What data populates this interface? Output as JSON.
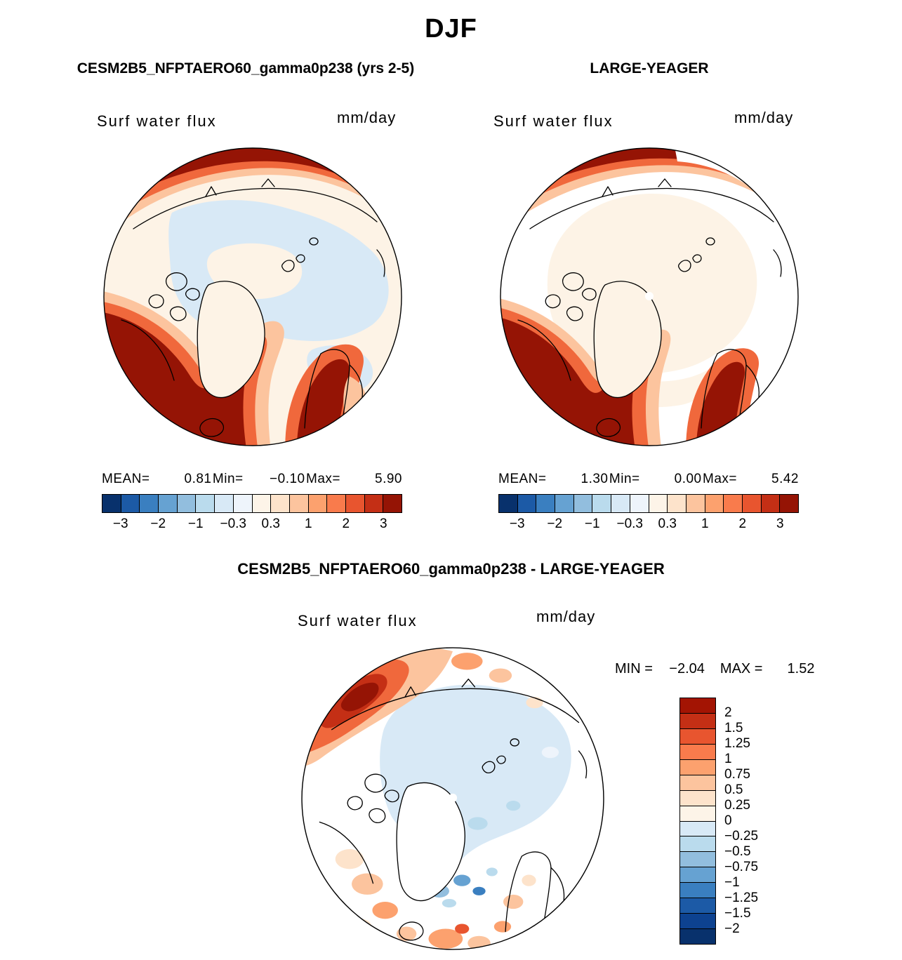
{
  "page": {
    "title": "DJF"
  },
  "panels": {
    "model": {
      "title": "CESM2B5_NFPTAERO60_gamma0p238 (yrs 2-5)",
      "field_label": "Surf water flux",
      "units": "mm/day",
      "stats": {
        "mean_label": "MEAN=",
        "mean": "0.81",
        "min_label": "Min=",
        "min": "−0.10",
        "max_label": "Max=",
        "max": "5.90"
      }
    },
    "obs": {
      "title": "LARGE-YEAGER",
      "field_label": "Surf water flux",
      "units": "mm/day",
      "stats": {
        "mean_label": "MEAN=",
        "mean": "1.30",
        "min_label": "Min=",
        "min": "0.00",
        "max_label": "Max=",
        "max": "5.42"
      }
    },
    "diff": {
      "title": "CESM2B5_NFPTAERO60_gamma0p238 - LARGE-YEAGER",
      "field_label": "Surf water flux",
      "units": "mm/day",
      "stats": {
        "min_label": "MIN =",
        "min": "−2.04",
        "max_label": "MAX =",
        "max": "1.52"
      }
    }
  },
  "colorbar_h": {
    "cells": 16,
    "colors": [
      "#08316c",
      "#1c5aa6",
      "#3a7fc0",
      "#66a2d2",
      "#92bede",
      "#badbed",
      "#d8e9f6",
      "#eef4fb",
      "#fdf4e8",
      "#fde3cb",
      "#fcc49e",
      "#fca16e",
      "#f97b4c",
      "#e8552f",
      "#c42f15",
      "#951405"
    ],
    "tick_labels": [
      "−3",
      "−2",
      "−1",
      "−0.3",
      "0.3",
      "1",
      "2",
      "3"
    ],
    "tick_positions": [
      1,
      3,
      5,
      7,
      9,
      11,
      13,
      15
    ]
  },
  "colorbar_v": {
    "cells": 16,
    "colors": [
      "#a31403",
      "#c42f15",
      "#e8552f",
      "#f97b4c",
      "#fca16e",
      "#fcc49e",
      "#fde3cb",
      "#fdf4e8",
      "#d8e9f6",
      "#badbed",
      "#92bede",
      "#66a2d2",
      "#3a7fc0",
      "#1c5aa6",
      "#0d4290",
      "#08316c"
    ],
    "tick_labels": [
      "2",
      "1.5",
      "1.25",
      "1",
      "0.75",
      "0.5",
      "0.25",
      "0",
      "−0.25",
      "−0.5",
      "−0.75",
      "−1",
      "−1.25",
      "−1.5",
      "−2"
    ],
    "tick_positions": [
      1,
      2,
      3,
      4,
      5,
      6,
      7,
      8,
      9,
      10,
      11,
      12,
      13,
      14,
      15
    ]
  },
  "chart_data": [
    {
      "type": "heatmap",
      "subtype": "polar_stereographic_map",
      "season": "DJF",
      "title": "CESM2B5_NFPTAERO60_gamma0p238 (yrs 2-5)",
      "variable": "Surf water flux",
      "units": "mm/day",
      "stats": {
        "mean": 0.81,
        "min": -0.1,
        "max": 5.9
      },
      "colorbar": {
        "orientation": "horizontal",
        "levels": [
          -3,
          -2,
          -1,
          -0.3,
          0.3,
          1,
          2,
          3
        ]
      }
    },
    {
      "type": "heatmap",
      "subtype": "polar_stereographic_map",
      "season": "DJF",
      "title": "LARGE-YEAGER",
      "variable": "Surf water flux",
      "units": "mm/day",
      "stats": {
        "mean": 1.3,
        "min": 0.0,
        "max": 5.42
      },
      "colorbar": {
        "orientation": "horizontal",
        "levels": [
          -3,
          -2,
          -1,
          -0.3,
          0.3,
          1,
          2,
          3
        ]
      }
    },
    {
      "type": "heatmap",
      "subtype": "polar_stereographic_map",
      "season": "DJF",
      "title": "CESM2B5_NFPTAERO60_gamma0p238 - LARGE-YEAGER",
      "variable": "Surf water flux",
      "units": "mm/day",
      "stats": {
        "min": -2.04,
        "max": 1.52
      },
      "colorbar": {
        "orientation": "vertical",
        "levels": [
          2,
          1.5,
          1.25,
          1,
          0.75,
          0.5,
          0.25,
          0,
          -0.25,
          -0.5,
          -0.75,
          -1,
          -1.25,
          -1.5,
          -2
        ]
      }
    }
  ]
}
